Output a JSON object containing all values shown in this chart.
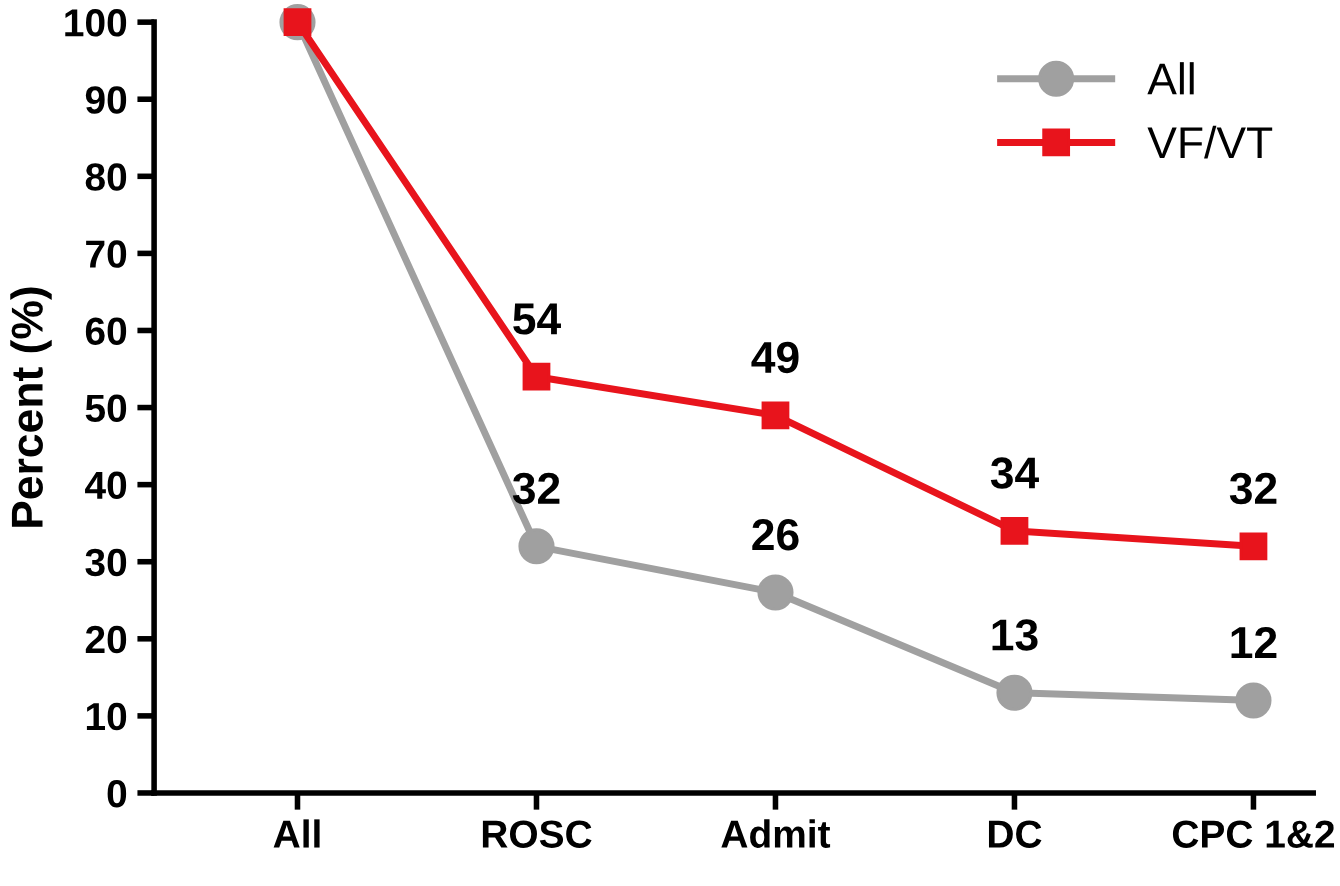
{
  "chart_data": {
    "type": "line",
    "ylabel": "Percent (%)",
    "categories": [
      "All",
      "ROSC",
      "Admit",
      "DC",
      "CPC 1&2"
    ],
    "series": [
      {
        "name": "All",
        "color": "#a0a0a0",
        "marker": "circle",
        "values": [
          100,
          32,
          26,
          13,
          12
        ],
        "value_labels": [
          null,
          "32",
          "26",
          "13",
          "12"
        ]
      },
      {
        "name": "VF/VT",
        "color": "#e8141c",
        "marker": "square",
        "values": [
          100,
          54,
          49,
          34,
          32
        ],
        "value_labels": [
          null,
          "54",
          "49",
          "34",
          "32"
        ]
      }
    ],
    "ylim": [
      0,
      100
    ],
    "yticks": [
      0,
      10,
      20,
      30,
      40,
      50,
      60,
      70,
      80,
      90,
      100
    ],
    "grid": false,
    "legend": "top right",
    "line_style": "solid"
  }
}
